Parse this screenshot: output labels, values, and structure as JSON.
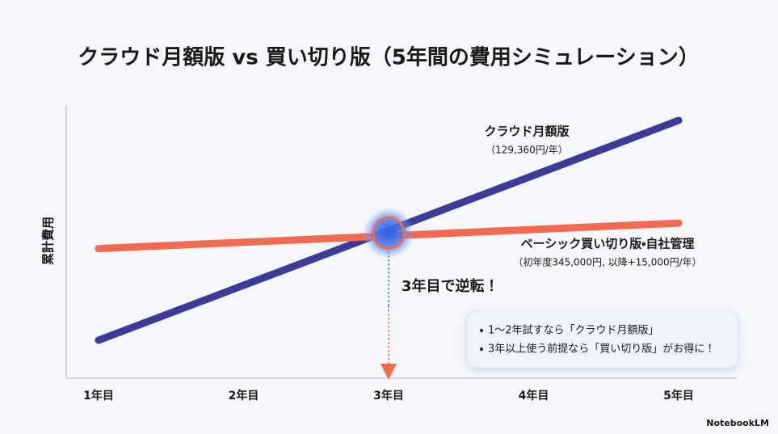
{
  "chart_data": {
    "type": "line",
    "title": "クラウド月額版 vs 買い切り版（5年間の費用シミュレーション）",
    "y_label": "累計費用",
    "categories": [
      "1年目",
      "2年目",
      "3年目",
      "4年目",
      "5年目"
    ],
    "series": [
      {
        "name": "クラウド月額版",
        "rate_label": "（129,360円/年）",
        "color": "#3c3b98",
        "values": [
          129360,
          258720,
          388080,
          517440,
          646800
        ]
      },
      {
        "name": "ベーシック買い切り版・自社管理",
        "rate_label": "（初年度345,000円, 以降+15,000円/年）",
        "color": "#f26b50",
        "values": [
          345000,
          360000,
          375000,
          390000,
          405000
        ]
      }
    ],
    "ylim": [
      40000,
      700000
    ],
    "annotation": "3年目で逆転！",
    "notes": [
      "1〜2年試すなら「クラウド月額版」",
      "3年以上使う前提なら「買い切り版」がお得に！"
    ],
    "brand": "NotebookLM"
  }
}
